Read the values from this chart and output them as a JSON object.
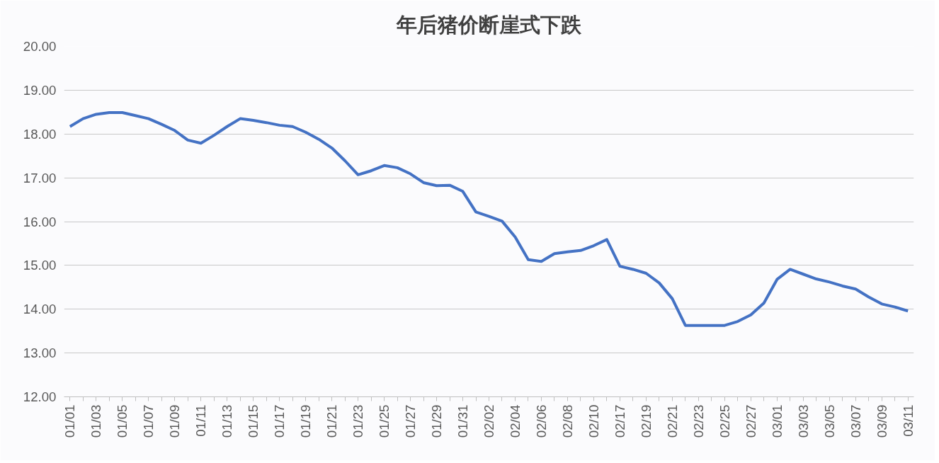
{
  "chart_data": {
    "type": "line",
    "title": "年后猪价断崖式下跌",
    "categories": [
      "01/01",
      null,
      "01/03",
      null,
      "01/05",
      null,
      "01/07",
      null,
      "01/09",
      null,
      "01/11",
      null,
      "01/13",
      null,
      "01/15",
      null,
      "01/17",
      null,
      "01/19",
      null,
      "01/21",
      null,
      "01/23",
      null,
      "01/25",
      null,
      "01/27",
      null,
      "01/29",
      null,
      "01/31",
      null,
      "02/02",
      null,
      "02/04",
      null,
      "02/06",
      null,
      "02/08",
      null,
      "02/10",
      null,
      "02/17",
      null,
      "02/19",
      null,
      "02/21",
      null,
      "02/23",
      null,
      "02/25",
      null,
      "02/27",
      null,
      "03/01",
      null,
      "03/03",
      null,
      "03/05",
      null,
      "03/07",
      null,
      "03/09",
      null,
      "03/11"
    ],
    "series": [
      {
        "color": "#4472c4",
        "values": [
          18.17,
          18.35,
          18.45,
          18.49,
          18.49,
          18.42,
          18.35,
          18.22,
          18.08,
          17.86,
          17.79,
          17.97,
          18.17,
          18.35,
          18.31,
          18.26,
          18.2,
          18.17,
          18.04,
          17.88,
          17.68,
          17.39,
          17.07,
          17.16,
          17.28,
          17.23,
          17.09,
          16.89,
          16.82,
          16.83,
          16.69,
          16.22,
          16.12,
          16.01,
          15.65,
          15.13,
          15.09,
          15.27,
          15.31,
          15.34,
          15.45,
          15.59,
          14.98,
          14.91,
          14.82,
          14.6,
          14.24,
          13.63,
          13.63,
          13.63,
          13.63,
          13.72,
          13.87,
          14.14,
          14.68,
          14.91,
          14.8,
          14.69,
          14.62,
          14.53,
          14.46,
          14.28,
          14.12,
          14.05,
          13.96
        ]
      }
    ],
    "ylim": [
      12,
      20
    ],
    "yticks": [
      {
        "value": 12,
        "label": "12.00"
      },
      {
        "value": 13,
        "label": "13.00"
      },
      {
        "value": 14,
        "label": "14.00"
      },
      {
        "value": 15,
        "label": "15.00"
      },
      {
        "value": 16,
        "label": "16.00"
      },
      {
        "value": 17,
        "label": "17.00"
      },
      {
        "value": 18,
        "label": "18.00"
      },
      {
        "value": 19,
        "label": "19.00"
      },
      {
        "value": 20,
        "label": "20.00"
      }
    ],
    "grid": "y",
    "line_style": "solid"
  }
}
